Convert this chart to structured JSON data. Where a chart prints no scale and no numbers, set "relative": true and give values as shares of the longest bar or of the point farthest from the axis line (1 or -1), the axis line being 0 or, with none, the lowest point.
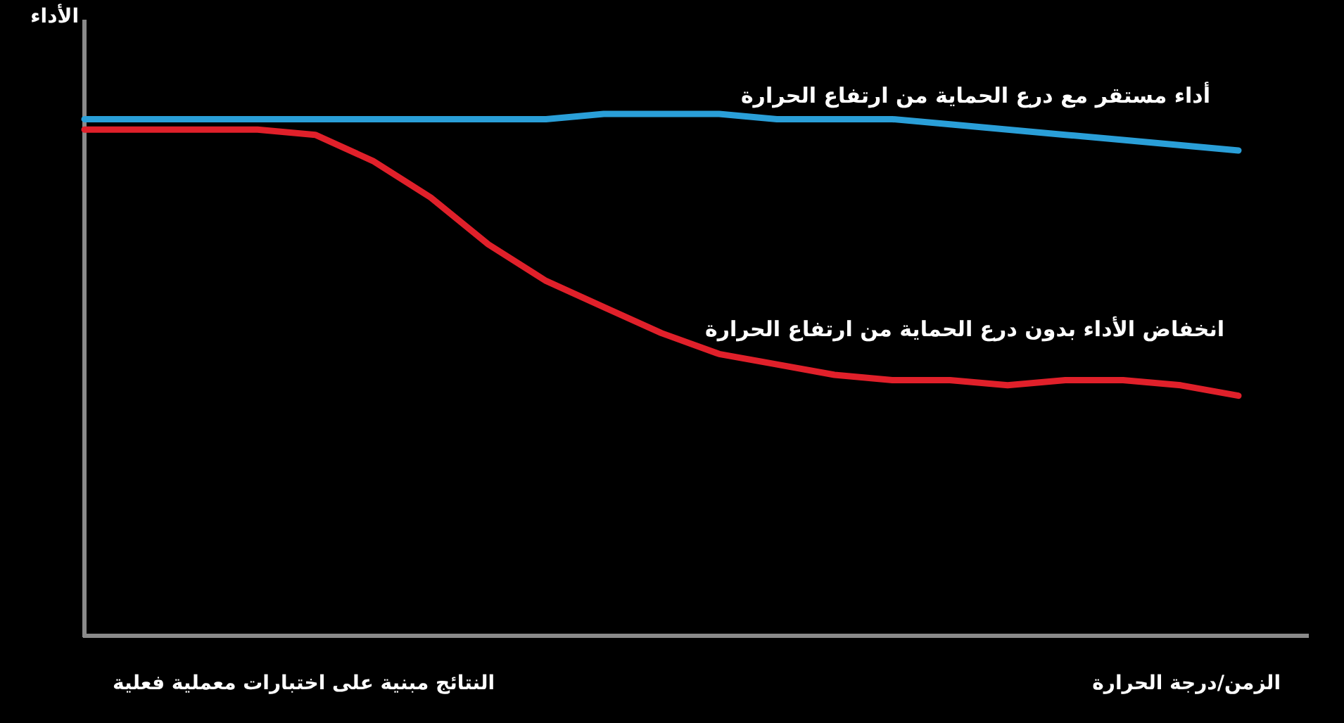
{
  "chart_data": {
    "type": "line",
    "relative": true,
    "ylabel": "الأداء",
    "xlabel": "الزمن/درجة الحرارة",
    "annotations": [
      "النتائج مبنية على اختبارات معملية فعلية"
    ],
    "categories": [
      null,
      null,
      null,
      null,
      null,
      null,
      null,
      null,
      null,
      null,
      null,
      null,
      null,
      null,
      null,
      null,
      null,
      null,
      null,
      null,
      null
    ],
    "series": [
      {
        "name": "أداء مستقر مع درع الحماية من ارتفاع الحرارة",
        "color": "#2a9fd8",
        "values": [
          0.99,
          0.99,
          0.99,
          0.99,
          0.99,
          0.99,
          0.99,
          0.99,
          0.99,
          1.0,
          1.0,
          1.0,
          0.99,
          0.99,
          0.99,
          0.98,
          0.97,
          0.96,
          0.95,
          0.94,
          0.93
        ]
      },
      {
        "name": "انخفاض الأداء بدون درع الحماية من ارتفاع الحرارة",
        "color": "#e0202a",
        "values": [
          0.97,
          0.97,
          0.97,
          0.97,
          0.96,
          0.91,
          0.84,
          0.75,
          0.68,
          0.63,
          0.58,
          0.54,
          0.52,
          0.5,
          0.49,
          0.49,
          0.48,
          0.49,
          0.49,
          0.48,
          0.46
        ]
      }
    ]
  }
}
